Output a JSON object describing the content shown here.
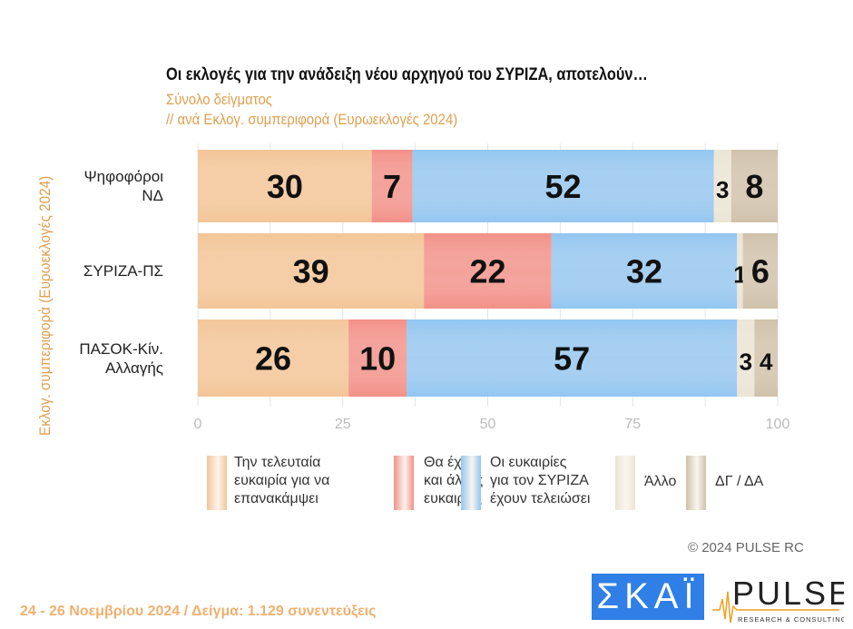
{
  "chart_data": {
    "type": "bar",
    "orientation": "horizontal",
    "stacked": true,
    "title": "Οι εκλογές για την ανάδειξη νέου αρχηγού του ΣΥΡΙΖΑ, αποτελούν…",
    "subtitle": [
      "Σύνολο δείγματος",
      "// ανά Εκλογ. συμπεριφορά (Ευρωεκλογές 2024)"
    ],
    "ylabel": "Εκλογ. συμπεριφορά (Ευρωεκλογές 2024)",
    "categories": [
      [
        "Ψηφοφόροι",
        "ΝΔ"
      ],
      [
        "ΣΥΡΙΖΑ-ΠΣ"
      ],
      [
        "ΠΑΣΟΚ-Κίν.",
        "Αλλαγής"
      ]
    ],
    "xlim": [
      0,
      100
    ],
    "xticks": [
      "0",
      "25",
      "50",
      "75",
      "100"
    ],
    "series": [
      {
        "name": [
          "Την τελευταία",
          "ευκαιρία για να",
          "επανακάμψει"
        ],
        "color": "#f3c597",
        "values": [
          30,
          39,
          26
        ]
      },
      {
        "name": [
          "Θα έχει",
          "και άλλες",
          "ευκαιρίες"
        ],
        "color": "#f29088",
        "values": [
          7,
          22,
          10
        ]
      },
      {
        "name": [
          "Οι ευκαιρίες",
          "για τον ΣΥΡΙΖΑ",
          "έχουν τελειώσει"
        ],
        "color": "#92c6f1",
        "values": [
          52,
          32,
          57
        ]
      },
      {
        "name": [
          "Άλλο"
        ],
        "color": "#ebe5d6",
        "values": [
          3,
          1,
          3
        ]
      },
      {
        "name": [
          "ΔΓ / ΔΑ"
        ],
        "color": "#cfc1aa",
        "values": [
          8,
          6,
          4
        ]
      }
    ],
    "legend": "bottom",
    "grid": true
  },
  "copyright": "©  2024  PULSE RC",
  "footer": "24 - 26 Νοεμβρίου 2024  /  Δείγμα:  1.129 συνεντεύξεις",
  "logos": {
    "skai": "ΣΚΑΪ",
    "pulse": "PULSE",
    "pulse_tag": "RESEARCH & CONSULTING"
  }
}
